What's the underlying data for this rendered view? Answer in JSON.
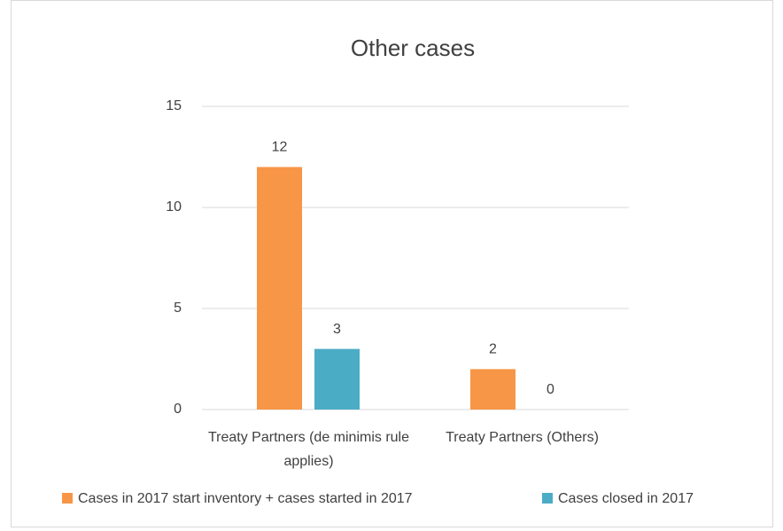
{
  "chart_data": {
    "type": "bar",
    "title": "Other cases",
    "categories": [
      "Treaty Partners (de minimis rule applies)",
      "Treaty Partners (Others)"
    ],
    "series": [
      {
        "name": "Cases in 2017 start inventory + cases started in 2017",
        "color": "#f79646",
        "values": [
          12,
          2
        ]
      },
      {
        "name": "Cases closed in 2017",
        "color": "#4bacc6",
        "values": [
          3,
          0
        ]
      }
    ],
    "ylim": [
      0,
      15
    ],
    "yticks": [
      0,
      5,
      10,
      15
    ],
    "grid": true,
    "legend": "bottom"
  }
}
